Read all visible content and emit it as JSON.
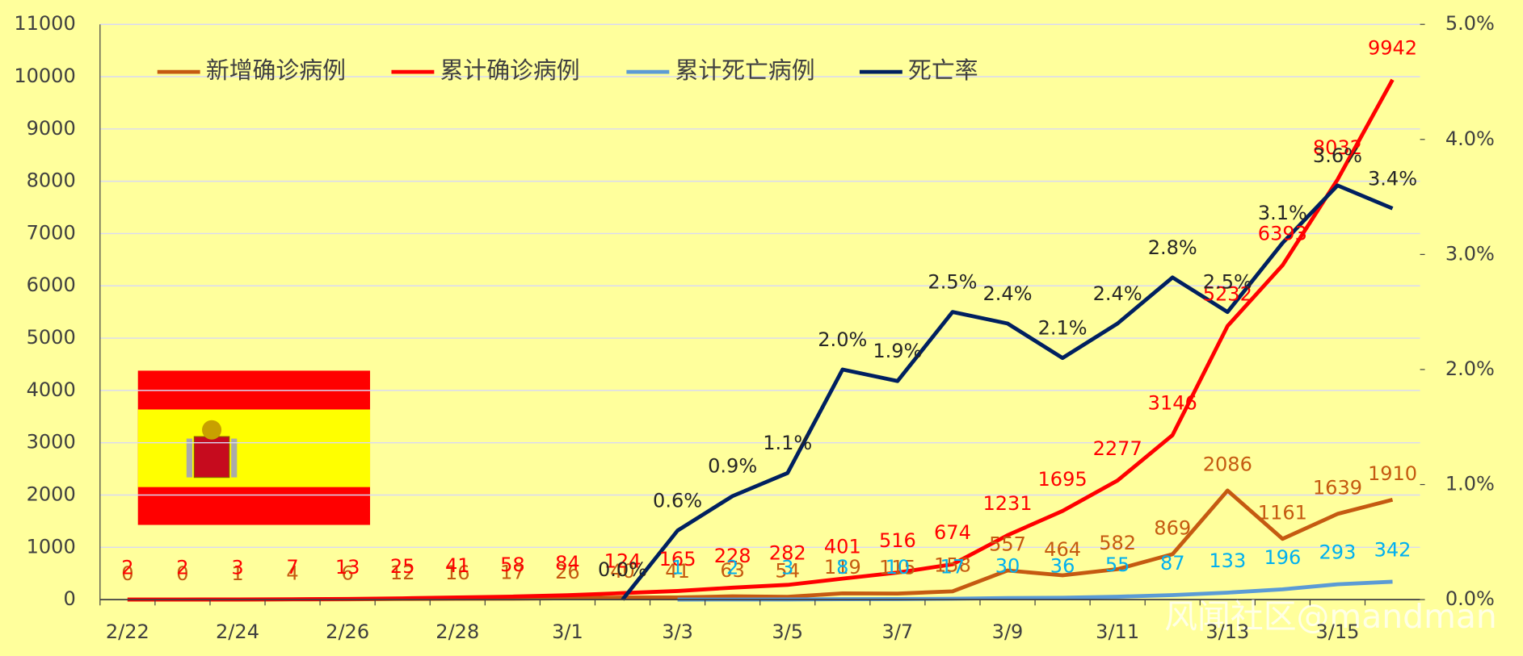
{
  "chart_data": {
    "type": "line",
    "categories": [
      "2/22",
      null,
      "2/24",
      null,
      "2/26",
      null,
      "2/28",
      null,
      "3/1",
      null,
      "3/3",
      null,
      "3/5",
      null,
      "3/7",
      null,
      "3/9",
      null,
      "3/11",
      null,
      "3/13",
      null,
      "3/15",
      null
    ],
    "series": [
      {
        "name": "新增确诊病例",
        "color": "#c55a11",
        "values": [
          0,
          0,
          1,
          4,
          6,
          12,
          16,
          17,
          26,
          40,
          41,
          63,
          54,
          119,
          115,
          158,
          557,
          464,
          582,
          869,
          2086,
          1161,
          1639,
          1910
        ]
      },
      {
        "name": "累计确诊病例",
        "color": "#ff0000",
        "values": [
          2,
          2,
          3,
          7,
          13,
          25,
          41,
          58,
          84,
          124,
          165,
          228,
          282,
          401,
          516,
          674,
          1231,
          1695,
          2277,
          3146,
          5232,
          6393,
          8032,
          9942
        ]
      },
      {
        "name": "累计死亡病例",
        "color": "#5b9bd5",
        "values": [
          null,
          null,
          null,
          null,
          null,
          null,
          null,
          null,
          null,
          null,
          1,
          2,
          3,
          8,
          10,
          17,
          30,
          36,
          55,
          87,
          133,
          196,
          293,
          342
        ]
      },
      {
        "name": "死亡率",
        "color": "#002060",
        "axis": "y2",
        "values": [
          null,
          null,
          null,
          null,
          null,
          null,
          null,
          null,
          null,
          0.0,
          0.6,
          0.9,
          1.1,
          2.0,
          1.9,
          2.5,
          2.4,
          2.1,
          2.4,
          2.8,
          2.5,
          3.1,
          3.6,
          3.4
        ],
        "value_labels": [
          null,
          null,
          null,
          null,
          null,
          null,
          null,
          null,
          null,
          "0.0%",
          "0.6%",
          "0.9%",
          "1.1%",
          "2.0%",
          "1.9%",
          "2.5%",
          "2.4%",
          "2.1%",
          "2.4%",
          "2.8%",
          "2.5%",
          "3.1%",
          "3.6%",
          "3.4%"
        ]
      }
    ],
    "ylim": [
      0,
      11000
    ],
    "yticks": [
      0,
      1000,
      2000,
      3000,
      4000,
      5000,
      6000,
      7000,
      8000,
      9000,
      10000,
      11000
    ],
    "y2lim": [
      0,
      5
    ],
    "y2ticks": [
      {
        "value": 0,
        "label": "0.0%"
      },
      {
        "value": 1,
        "label": "1.0%"
      },
      {
        "value": 2,
        "label": "2.0%"
      },
      {
        "value": 3,
        "label": "3.0%"
      },
      {
        "value": 4,
        "label": "4.0%"
      },
      {
        "value": 5,
        "label": "5.0%"
      }
    ],
    "grid": true,
    "legend": "top",
    "watermark": "风闻社区@mandman"
  }
}
